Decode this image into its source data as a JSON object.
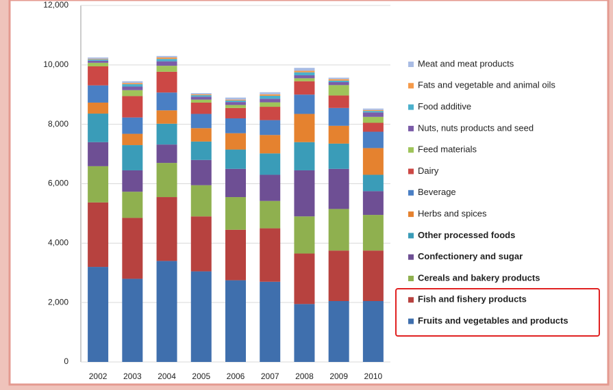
{
  "chart_data": {
    "type": "stacked_bar",
    "categories": [
      "2002",
      "2003",
      "2004",
      "2005",
      "2006",
      "2007",
      "2008",
      "2009",
      "2010"
    ],
    "ylim": [
      0,
      12000
    ],
    "yticks": [
      0,
      {
        "value": 2000,
        "label": "2,000"
      },
      {
        "value": 4000,
        "label": "4,000"
      },
      {
        "value": 6000,
        "label": "6,000"
      },
      {
        "value": 8000,
        "label": "8,000"
      },
      {
        "value": 10000,
        "label": "10,000"
      },
      {
        "value": 12000,
        "label": "12,000"
      }
    ],
    "grid": true,
    "series": [
      {
        "name": "Fruits and vegetables and products",
        "color": "#3f6fad",
        "values": [
          3200,
          2800,
          3400,
          3050,
          2750,
          2700,
          1950,
          2050,
          2050
        ]
      },
      {
        "name": "Fish and fishery products",
        "color": "#b7423f",
        "values": [
          2170,
          2050,
          2150,
          1850,
          1700,
          1800,
          1700,
          1700,
          1700
        ]
      },
      {
        "name": "Cereals and bakery products",
        "color": "#8fb04f",
        "values": [
          1220,
          880,
          1150,
          1050,
          1100,
          920,
          1250,
          1400,
          1200
        ]
      },
      {
        "name": "Confectionery and sugar",
        "color": "#6e4f94",
        "values": [
          810,
          720,
          620,
          850,
          950,
          880,
          1550,
          1350,
          800
        ]
      },
      {
        "name": "Other processed foods",
        "color": "#3a9cb8",
        "values": [
          960,
          850,
          700,
          620,
          650,
          720,
          950,
          850,
          550
        ]
      },
      {
        "name": "Herbs and spices",
        "color": "#e5822f",
        "values": [
          370,
          380,
          450,
          450,
          550,
          620,
          950,
          600,
          900
        ]
      },
      {
        "name": "Beverage",
        "color": "#4a7fc4",
        "values": [
          580,
          550,
          600,
          480,
          500,
          500,
          650,
          600,
          550
        ]
      },
      {
        "name": "Dairy",
        "color": "#cc4845",
        "values": [
          640,
          720,
          700,
          380,
          350,
          450,
          450,
          420,
          300
        ]
      },
      {
        "name": "Feed materials",
        "color": "#9fc45a",
        "values": [
          120,
          200,
          200,
          100,
          100,
          150,
          100,
          350,
          200
        ]
      },
      {
        "name": "Nuts, nuts products and seed",
        "color": "#7b5ca8",
        "values": [
          70,
          120,
          150,
          100,
          100,
          120,
          100,
          100,
          150
        ]
      },
      {
        "name": "Food additive",
        "color": "#4bb0cc",
        "values": [
          40,
          80,
          80,
          50,
          50,
          100,
          100,
          50,
          50
        ]
      },
      {
        "name": "Fats and vegetable and animal oils",
        "color": "#f59a4a",
        "values": [
          20,
          40,
          50,
          30,
          30,
          50,
          50,
          50,
          30
        ]
      },
      {
        "name": "Meat and meat products",
        "color": "#a9bce4",
        "values": [
          50,
          60,
          50,
          40,
          70,
          70,
          100,
          50,
          50
        ]
      }
    ]
  }
}
